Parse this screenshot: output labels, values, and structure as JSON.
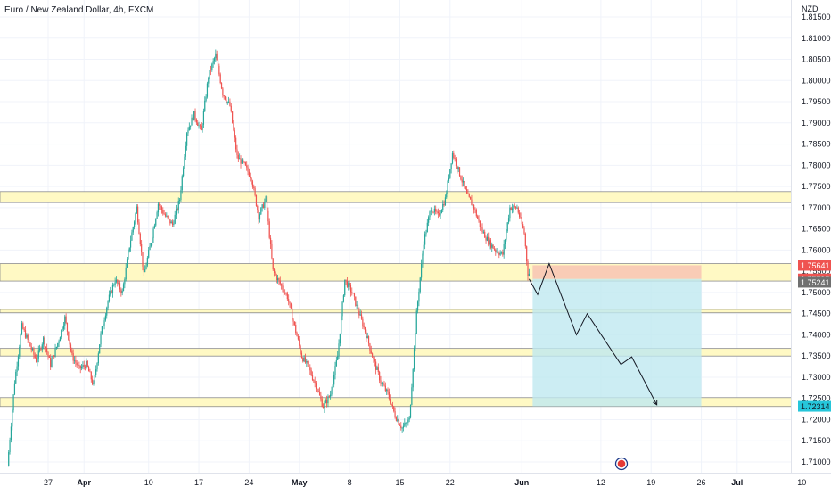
{
  "header": {
    "symbol_title": "Euro / New Zealand Dollar, 4h, FXCM",
    "currency": "NZD"
  },
  "colors": {
    "up": "#26a69a",
    "down": "#ef5350",
    "zone_fill": "#fff9c4",
    "zone_border": "#8d8d8d",
    "stop_fill": "#f8c4b4",
    "target_fill": "#bfe9f0",
    "target_fill_bottom": "#c8efd5",
    "price_tag_up": "#ef5350",
    "price_tag_current": "#707070",
    "price_tag_target": "#26c6da",
    "grid": "#f0f3fa",
    "axis_text": "#131722"
  },
  "chart_data": {
    "type": "candlestick",
    "title": "Euro / New Zealand Dollar, 4h, FXCM",
    "y_axis_unit": "NZD",
    "ylim": [
      1.706,
      1.8195
    ],
    "y_ticks": [
      "1.81500",
      "1.81000",
      "1.80500",
      "1.80000",
      "1.79500",
      "1.79000",
      "1.78500",
      "1.78000",
      "1.77500",
      "1.77000",
      "1.76500",
      "1.76000",
      "1.75500",
      "1.75000",
      "1.74500",
      "1.74000",
      "1.73500",
      "1.73000",
      "1.72500",
      "1.72000",
      "1.71500",
      "1.71000"
    ],
    "x_ticks": [
      {
        "label": "27",
        "day": 0
      },
      {
        "label": "Apr",
        "day": 5
      },
      {
        "label": "10",
        "day": 14
      },
      {
        "label": "17",
        "day": 21
      },
      {
        "label": "24",
        "day": 28
      },
      {
        "label": "May",
        "day": 35
      },
      {
        "label": "8",
        "day": 42
      },
      {
        "label": "15",
        "day": 49
      },
      {
        "label": "22",
        "day": 56
      },
      {
        "label": "Jun",
        "day": 66
      },
      {
        "label": "12",
        "day": 77
      },
      {
        "label": "19",
        "day": 84
      },
      {
        "label": "26",
        "day": 91
      },
      {
        "label": "Jul",
        "day": 96
      },
      {
        "label": "10",
        "day": 105
      }
    ],
    "price_path_days": [
      -5.5,
      105
    ],
    "price_path": [
      [
        -5.5,
        1.709
      ],
      [
        -4.5,
        1.729
      ],
      [
        -3.5,
        1.742
      ],
      [
        -2.5,
        1.738
      ],
      [
        -1.5,
        1.734
      ],
      [
        -0.5,
        1.739
      ],
      [
        0.5,
        1.733
      ],
      [
        1.5,
        1.738
      ],
      [
        2.5,
        1.744
      ],
      [
        3.5,
        1.735
      ],
      [
        4.5,
        1.732
      ],
      [
        5.5,
        1.733
      ],
      [
        6.5,
        1.728
      ],
      [
        7.5,
        1.74
      ],
      [
        8.5,
        1.748
      ],
      [
        9.5,
        1.753
      ],
      [
        10.5,
        1.75
      ],
      [
        11.5,
        1.761
      ],
      [
        12.5,
        1.77
      ],
      [
        13.5,
        1.754
      ],
      [
        14.5,
        1.762
      ],
      [
        15.5,
        1.771
      ],
      [
        16.5,
        1.768
      ],
      [
        17.5,
        1.766
      ],
      [
        18.5,
        1.772
      ],
      [
        19.5,
        1.788
      ],
      [
        20.5,
        1.792
      ],
      [
        21.5,
        1.788
      ],
      [
        22.5,
        1.801
      ],
      [
        23.5,
        1.806
      ],
      [
        24.5,
        1.797
      ],
      [
        25.5,
        1.794
      ],
      [
        26.5,
        1.782
      ],
      [
        27.5,
        1.78
      ],
      [
        28.5,
        1.777
      ],
      [
        29.5,
        1.768
      ],
      [
        30.5,
        1.772
      ],
      [
        31.5,
        1.755
      ],
      [
        32.5,
        1.752
      ],
      [
        33.5,
        1.749
      ],
      [
        34.5,
        1.742
      ],
      [
        35.5,
        1.735
      ],
      [
        36.5,
        1.732
      ],
      [
        37.5,
        1.728
      ],
      [
        38.5,
        1.723
      ],
      [
        39.5,
        1.726
      ],
      [
        40.5,
        1.735
      ],
      [
        41.5,
        1.753
      ],
      [
        42.5,
        1.75
      ],
      [
        43.5,
        1.745
      ],
      [
        44.5,
        1.74
      ],
      [
        45.5,
        1.734
      ],
      [
        46.5,
        1.729
      ],
      [
        47.5,
        1.726
      ],
      [
        48.5,
        1.721
      ],
      [
        49.5,
        1.718
      ],
      [
        50.5,
        1.72
      ],
      [
        51.5,
        1.745
      ],
      [
        52.5,
        1.762
      ],
      [
        53.5,
        1.77
      ],
      [
        54.5,
        1.768
      ],
      [
        55.5,
        1.772
      ],
      [
        56.5,
        1.783
      ],
      [
        57.5,
        1.778
      ],
      [
        58.5,
        1.773
      ],
      [
        59.5,
        1.77
      ],
      [
        60.5,
        1.765
      ],
      [
        61.5,
        1.762
      ],
      [
        62.5,
        1.76
      ],
      [
        63.5,
        1.759
      ],
      [
        64.5,
        1.77
      ],
      [
        65.5,
        1.77
      ],
      [
        66.5,
        1.764
      ],
      [
        67.0,
        1.7545
      ]
    ],
    "zones": [
      {
        "name": "resistance-zone",
        "top": 1.7738,
        "bottom": 1.7712
      },
      {
        "name": "entry-zone",
        "top": 1.7568,
        "bottom": 1.7527
      },
      {
        "name": "mid-zone",
        "top": 1.746,
        "bottom": 1.7452
      },
      {
        "name": "lower-zone",
        "top": 1.7368,
        "bottom": 1.735
      },
      {
        "name": "support-zone",
        "top": 1.7252,
        "bottom": 1.7231
      }
    ],
    "position": {
      "start_day": 67.5,
      "end_day": 91,
      "stop": 1.75641,
      "entry": 1.75319,
      "target": 1.72314
    },
    "projection": [
      [
        67.0,
        1.7532
      ],
      [
        68.2,
        1.7495
      ],
      [
        69.8,
        1.7568
      ],
      [
        73.6,
        1.74
      ],
      [
        75.1,
        1.745
      ],
      [
        79.8,
        1.733
      ],
      [
        81.3,
        1.7348
      ],
      [
        84.8,
        1.7235
      ]
    ],
    "price_tags": [
      {
        "label": "1.75641",
        "value": 1.75641,
        "kind": "stop"
      },
      {
        "label": "1.75300",
        "value": 1.753,
        "kind": "hidden"
      },
      {
        "label": "1.75319",
        "value": 1.75319,
        "kind": "entry"
      },
      {
        "label": "1.75241",
        "value": 1.75241,
        "kind": "current"
      },
      {
        "label": "1.72314",
        "value": 1.72314,
        "kind": "target"
      }
    ]
  }
}
